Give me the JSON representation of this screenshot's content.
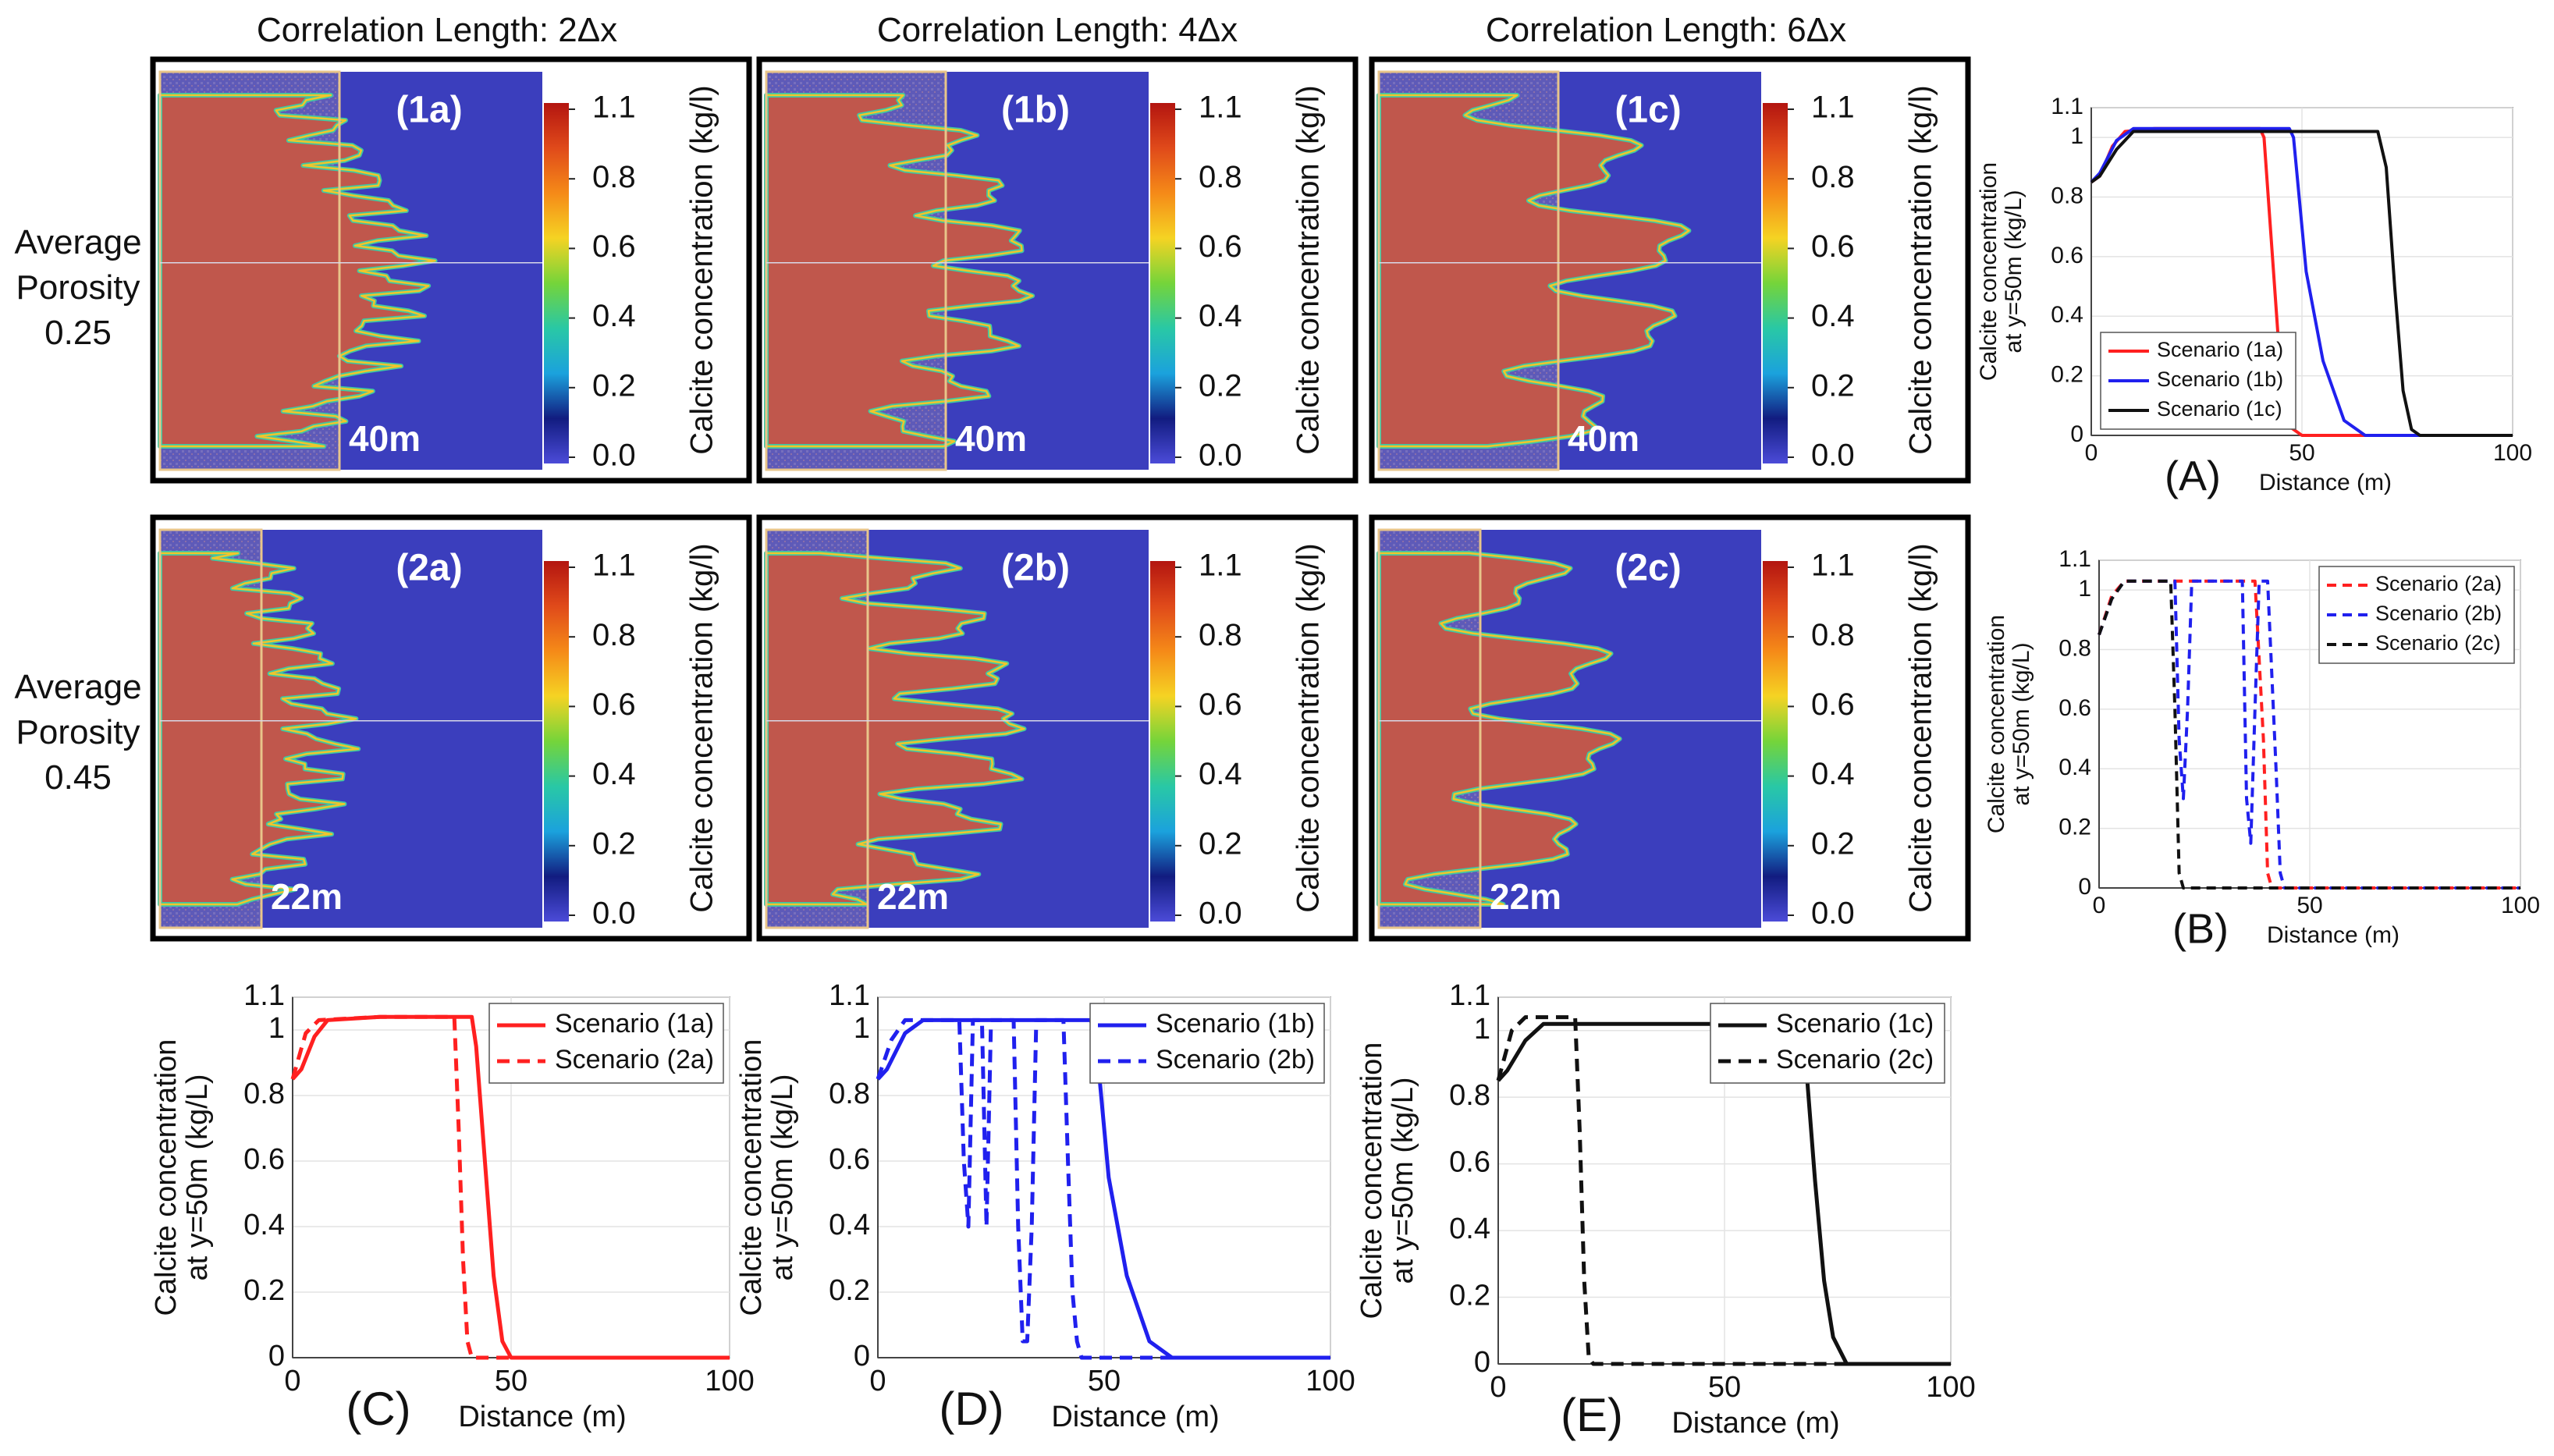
{
  "column_headers": [
    "Correlation Length: 2Δx",
    "Correlation Length: 4Δx",
    "Correlation Length: 6Δx"
  ],
  "row_headers": [
    {
      "line1": "Average",
      "line2": "Porosity",
      "line3": "0.25"
    },
    {
      "line1": "Average",
      "line2": "Porosity",
      "line3": "0.45"
    }
  ],
  "colors": {
    "red": "#ff2020",
    "blue": "#2020ee",
    "black": "#111111",
    "field_blue": "#3b3ebd",
    "calcite_red": "#c0574c",
    "box_tan": "#e8c58a"
  },
  "maps": [
    {
      "label": "(1a)",
      "distance": "40m"
    },
    {
      "label": "(1b)",
      "distance": "40m"
    },
    {
      "label": "(1c)",
      "distance": "40m"
    },
    {
      "label": "(2a)",
      "distance": "22m"
    },
    {
      "label": "(2b)",
      "distance": "22m"
    },
    {
      "label": "(2c)",
      "distance": "22m"
    }
  ],
  "colorbar": {
    "ticks": [
      "1.1",
      "0.8",
      "0.6",
      "0.4",
      "0.2",
      "0.0"
    ],
    "label": "Calcite concentration (kg/l)",
    "colormap": [
      "#b31510",
      "#e04a1a",
      "#f58a18",
      "#f5d323",
      "#75d43a",
      "#29c8a5",
      "#1ba2dd",
      "#121c80",
      "#4b4bd8"
    ]
  },
  "chart_data": [
    {
      "type": "line",
      "panel": "(A)",
      "xlabel": "Distance (m)",
      "ylabel_line1": "Calcite concentration",
      "ylabel_line2": "at y=50m (kg/L)",
      "xlim": [
        0,
        100
      ],
      "ylim": [
        0,
        1.1
      ],
      "xticks": [
        "0",
        "50",
        "100"
      ],
      "yticks": [
        "0",
        "0.2",
        "0.4",
        "0.6",
        "0.8",
        "1",
        "1.1"
      ],
      "legend_position": "bottom-left",
      "series": [
        {
          "name": "Scenario (1a)",
          "color": "red",
          "dash": false,
          "points": [
            [
              0,
              0.85
            ],
            [
              2,
              0.87
            ],
            [
              5,
              0.97
            ],
            [
              8,
              1.02
            ],
            [
              15,
              1.03
            ],
            [
              30,
              1.03
            ],
            [
              40,
              1.03
            ],
            [
              41,
              1.0
            ],
            [
              43,
              0.6
            ],
            [
              45,
              0.2
            ],
            [
              47,
              0.03
            ],
            [
              50,
              0
            ],
            [
              100,
              0
            ]
          ]
        },
        {
          "name": "Scenario (1b)",
          "color": "blue",
          "dash": false,
          "points": [
            [
              0,
              0.85
            ],
            [
              2,
              0.88
            ],
            [
              6,
              0.99
            ],
            [
              10,
              1.03
            ],
            [
              30,
              1.03
            ],
            [
              47,
              1.03
            ],
            [
              48,
              1.0
            ],
            [
              51,
              0.55
            ],
            [
              55,
              0.25
            ],
            [
              60,
              0.05
            ],
            [
              65,
              0
            ],
            [
              100,
              0
            ]
          ]
        },
        {
          "name": "Scenario (1c)",
          "color": "black",
          "dash": false,
          "points": [
            [
              0,
              0.85
            ],
            [
              2,
              0.87
            ],
            [
              6,
              0.96
            ],
            [
              10,
              1.02
            ],
            [
              40,
              1.02
            ],
            [
              68,
              1.02
            ],
            [
              70,
              0.9
            ],
            [
              72,
              0.5
            ],
            [
              74,
              0.15
            ],
            [
              76,
              0.02
            ],
            [
              78,
              0
            ],
            [
              100,
              0
            ]
          ]
        }
      ]
    },
    {
      "type": "line",
      "panel": "(B)",
      "xlabel": "Distance (m)",
      "ylabel_line1": "Calcite concentration",
      "ylabel_line2": "at y=50m (kg/L)",
      "xlim": [
        0,
        100
      ],
      "ylim": [
        0,
        1.1
      ],
      "xticks": [
        "0",
        "50",
        "100"
      ],
      "yticks": [
        "0",
        "0.2",
        "0.4",
        "0.6",
        "0.8",
        "1",
        "1.1"
      ],
      "legend_position": "top-right",
      "series": [
        {
          "name": "Scenario (2a)",
          "color": "red",
          "dash": true,
          "points": [
            [
              0,
              0.85
            ],
            [
              3,
              0.98
            ],
            [
              6,
              1.03
            ],
            [
              35,
              1.03
            ],
            [
              37,
              1.03
            ],
            [
              39,
              0.5
            ],
            [
              40,
              0.05
            ],
            [
              41,
              0
            ],
            [
              100,
              0
            ]
          ]
        },
        {
          "name": "Scenario (2b)",
          "color": "blue",
          "dash": true,
          "points": [
            [
              0,
              0.85
            ],
            [
              3,
              0.97
            ],
            [
              6,
              1.03
            ],
            [
              18,
              1.03
            ],
            [
              19,
              0.5
            ],
            [
              20,
              0.3
            ],
            [
              21,
              0.6
            ],
            [
              22,
              1.03
            ],
            [
              34,
              1.03
            ],
            [
              35,
              0.3
            ],
            [
              36,
              0.15
            ],
            [
              37,
              0.6
            ],
            [
              38,
              1.03
            ],
            [
              40,
              1.03
            ],
            [
              42,
              0.4
            ],
            [
              43,
              0.05
            ],
            [
              44,
              0
            ],
            [
              100,
              0
            ]
          ]
        },
        {
          "name": "Scenario (2c)",
          "color": "black",
          "dash": true,
          "points": [
            [
              0,
              0.85
            ],
            [
              3,
              0.97
            ],
            [
              6,
              1.03
            ],
            [
              17,
              1.03
            ],
            [
              18,
              0.6
            ],
            [
              19,
              0.05
            ],
            [
              20,
              0
            ],
            [
              100,
              0
            ]
          ]
        }
      ]
    },
    {
      "type": "line",
      "panel": "(C)",
      "xlabel": "Distance (m)",
      "ylabel_line1": "Calcite concentration",
      "ylabel_line2": "at y=50m (kg/L)",
      "xlim": [
        0,
        100
      ],
      "ylim": [
        0,
        1.1
      ],
      "xticks": [
        "0",
        "50",
        "100"
      ],
      "yticks": [
        "0",
        "0.2",
        "0.4",
        "0.6",
        "0.8",
        "1",
        "1.1"
      ],
      "legend_position": "top-right",
      "series": [
        {
          "name": "Scenario (1a)",
          "color": "red",
          "dash": false,
          "points": [
            [
              0,
              0.85
            ],
            [
              2,
              0.88
            ],
            [
              5,
              0.98
            ],
            [
              8,
              1.03
            ],
            [
              20,
              1.04
            ],
            [
              35,
              1.04
            ],
            [
              41,
              1.04
            ],
            [
              42,
              0.95
            ],
            [
              44,
              0.6
            ],
            [
              46,
              0.25
            ],
            [
              48,
              0.05
            ],
            [
              50,
              0
            ],
            [
              100,
              0
            ]
          ]
        },
        {
          "name": "Scenario (2a)",
          "color": "red",
          "dash": true,
          "points": [
            [
              0,
              0.85
            ],
            [
              3,
              0.99
            ],
            [
              6,
              1.03
            ],
            [
              20,
              1.04
            ],
            [
              37,
              1.04
            ],
            [
              38,
              0.7
            ],
            [
              39,
              0.3
            ],
            [
              40,
              0.05
            ],
            [
              41,
              0
            ],
            [
              100,
              0
            ]
          ]
        }
      ]
    },
    {
      "type": "line",
      "panel": "(D)",
      "xlabel": "Distance (m)",
      "ylabel_line1": "Calcite concentration",
      "ylabel_line2": "at y=50m (kg/L)",
      "xlim": [
        0,
        100
      ],
      "ylim": [
        0,
        1.1
      ],
      "xticks": [
        "0",
        "50",
        "100"
      ],
      "yticks": [
        "0",
        "0.2",
        "0.4",
        "0.6",
        "0.8",
        "1",
        "1.1"
      ],
      "legend_position": "top-right",
      "series": [
        {
          "name": "Scenario (1b)",
          "color": "blue",
          "dash": false,
          "points": [
            [
              0,
              0.85
            ],
            [
              2,
              0.88
            ],
            [
              6,
              0.99
            ],
            [
              10,
              1.03
            ],
            [
              30,
              1.03
            ],
            [
              47,
              1.03
            ],
            [
              48,
              1.0
            ],
            [
              51,
              0.55
            ],
            [
              55,
              0.25
            ],
            [
              60,
              0.05
            ],
            [
              65,
              0
            ],
            [
              100,
              0
            ]
          ]
        },
        {
          "name": "Scenario (2b)",
          "color": "blue",
          "dash": true,
          "points": [
            [
              0,
              0.85
            ],
            [
              3,
              0.97
            ],
            [
              6,
              1.03
            ],
            [
              18,
              1.03
            ],
            [
              19,
              0.6
            ],
            [
              20,
              0.4
            ],
            [
              21,
              1.03
            ],
            [
              23,
              1.03
            ],
            [
              24,
              0.4
            ],
            [
              25,
              1.03
            ],
            [
              30,
              1.03
            ],
            [
              31,
              0.4
            ],
            [
              32,
              0.05
            ],
            [
              33,
              0.05
            ],
            [
              34,
              0.4
            ],
            [
              35,
              1.03
            ],
            [
              41,
              1.03
            ],
            [
              42,
              0.6
            ],
            [
              43,
              0.2
            ],
            [
              44,
              0.05
            ],
            [
              45,
              0
            ],
            [
              100,
              0
            ]
          ]
        }
      ]
    },
    {
      "type": "line",
      "panel": "(E)",
      "xlabel": "Distance (m)",
      "ylabel_line1": "Calcite concentration",
      "ylabel_line2": "at y=50m (kg/L)",
      "xlim": [
        0,
        100
      ],
      "ylim": [
        0,
        1.1
      ],
      "xticks": [
        "0",
        "50",
        "100"
      ],
      "yticks": [
        "0",
        "0.2",
        "0.4",
        "0.6",
        "0.8",
        "1",
        "1.1"
      ],
      "legend_position": "top-right",
      "series": [
        {
          "name": "Scenario (1c)",
          "color": "black",
          "dash": false,
          "points": [
            [
              0,
              0.85
            ],
            [
              2,
              0.88
            ],
            [
              6,
              0.97
            ],
            [
              10,
              1.02
            ],
            [
              40,
              1.02
            ],
            [
              67,
              1.02
            ],
            [
              68,
              0.9
            ],
            [
              70,
              0.55
            ],
            [
              72,
              0.25
            ],
            [
              74,
              0.08
            ],
            [
              77,
              0
            ],
            [
              100,
              0
            ]
          ]
        },
        {
          "name": "Scenario (2c)",
          "color": "black",
          "dash": true,
          "points": [
            [
              0,
              0.85
            ],
            [
              3,
              1.0
            ],
            [
              6,
              1.04
            ],
            [
              17,
              1.04
            ],
            [
              18,
              0.7
            ],
            [
              19,
              0.25
            ],
            [
              20,
              0.02
            ],
            [
              21,
              0
            ],
            [
              100,
              0
            ]
          ]
        }
      ]
    }
  ]
}
